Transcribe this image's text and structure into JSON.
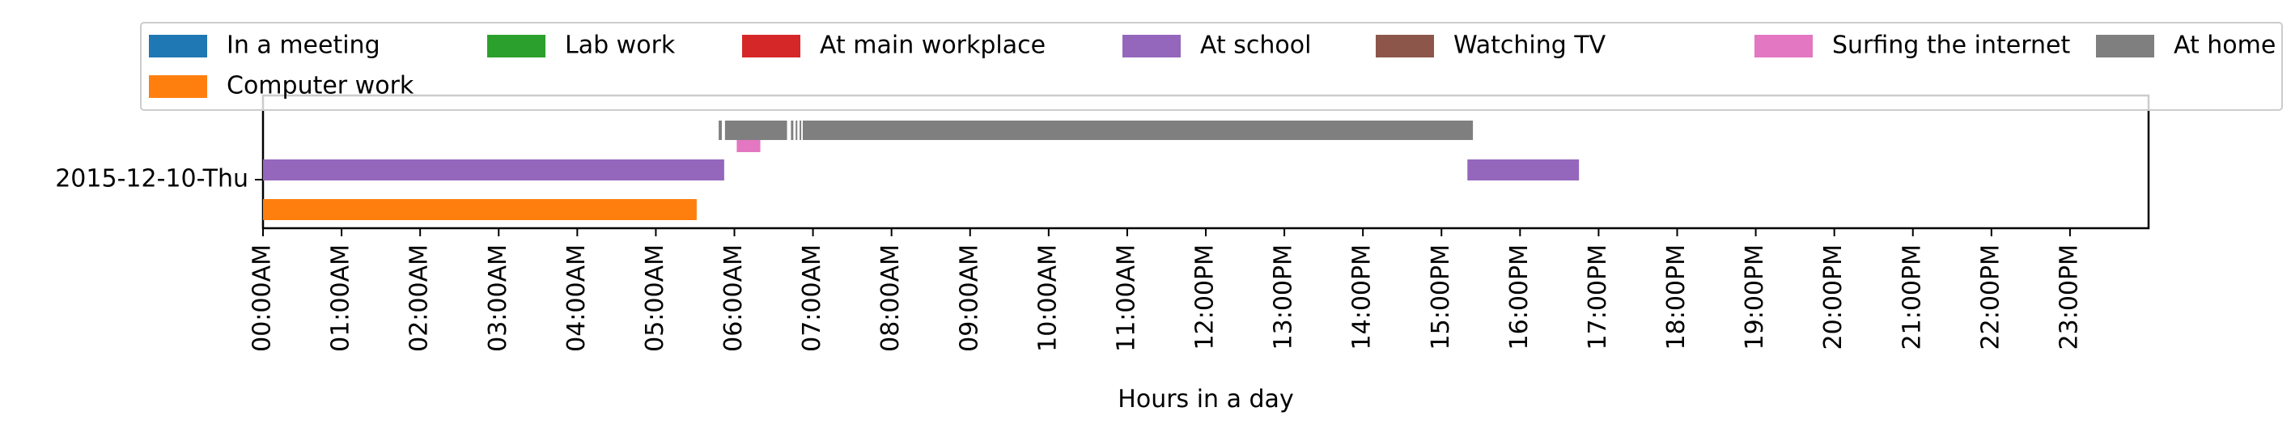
{
  "chart_data": {
    "type": "timeline",
    "xlabel": "Hours in a day",
    "ylabel": "",
    "xlim": [
      0,
      24
    ],
    "category": "2015-12-10-Thu",
    "x_ticks": [
      "00:00AM",
      "01:00AM",
      "02:00AM",
      "03:00AM",
      "04:00AM",
      "05:00AM",
      "06:00AM",
      "07:00AM",
      "08:00AM",
      "09:00AM",
      "10:00AM",
      "11:00AM",
      "12:00PM",
      "13:00PM",
      "14:00PM",
      "15:00PM",
      "16:00PM",
      "17:00PM",
      "18:00PM",
      "19:00PM",
      "20:00PM",
      "21:00PM",
      "22:00PM",
      "23:00PM"
    ],
    "legend_position": "top",
    "legend": [
      {
        "name": "In a meeting",
        "color": "#1f77b4"
      },
      {
        "name": "Lab work",
        "color": "#2ca02c"
      },
      {
        "name": "At main workplace",
        "color": "#d62728"
      },
      {
        "name": "At school",
        "color": "#9467bd"
      },
      {
        "name": "Watching TV",
        "color": "#8c564b"
      },
      {
        "name": "Surfing the internet",
        "color": "#e377c2"
      },
      {
        "name": "At home",
        "color": "#7f7f7f"
      },
      {
        "name": "Computer work",
        "color": "#ff7f0e"
      }
    ],
    "series": [
      {
        "name": "Computer work",
        "color": "#ff7f0e",
        "lane": 0,
        "intervals": [
          [
            0.0,
            5.52
          ]
        ]
      },
      {
        "name": "At school",
        "color": "#9467bd",
        "lane": 1,
        "intervals": [
          [
            0.0,
            5.87
          ],
          [
            15.33,
            16.75
          ]
        ]
      },
      {
        "name": "Surfing the internet",
        "color": "#e377c2",
        "lane": 2,
        "intervals": [
          [
            6.03,
            6.33
          ]
        ]
      },
      {
        "name": "At home",
        "color": "#7f7f7f",
        "lane": 3,
        "intervals": [
          [
            5.8,
            5.84
          ],
          [
            5.88,
            6.67
          ],
          [
            6.72,
            6.75
          ],
          [
            6.78,
            6.8
          ],
          [
            6.83,
            6.85
          ],
          [
            6.87,
            15.4
          ]
        ]
      }
    ]
  }
}
